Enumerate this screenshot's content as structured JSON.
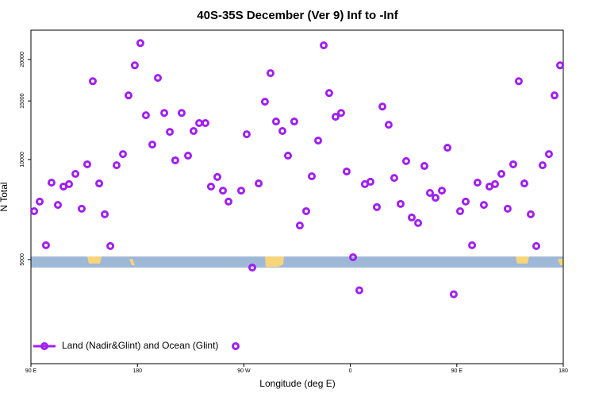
{
  "chart_data": {
    "type": "scatter",
    "title": "40S-35S December (Ver 9)   Inf to -Inf",
    "x_label": "Longitude (deg E)",
    "y_label": "N Total",
    "log_y": true,
    "xlim": [
      90,
      540
    ],
    "ylim": [
      2430,
      24500
    ],
    "xticks": [
      {
        "value": 90,
        "label": "90 E"
      },
      180,
      {
        "value": 270,
        "label": "90 W"
      },
      {
        "value": 360,
        "label": "0"
      },
      {
        "value": 450,
        "label": "90 E"
      },
      {
        "value": 540,
        "label": "180"
      }
    ],
    "yticks": [
      5000,
      10000,
      15000,
      20000
    ],
    "legend": "bottom-left",
    "series": [
      {
        "name": "Land (Nadir&Glint) and Ocean (Glint)",
        "color": "#a020f0",
        "x": [
          92.7,
          97.4,
          102.7,
          107.4,
          112.8,
          117.5,
          122.2,
          127.6,
          132.9,
          137.6,
          142.3,
          147.7,
          152.4,
          157.1,
          162.4,
          167.8,
          172.5,
          177.8,
          182.5,
          187.2,
          192.6,
          197.3,
          202.7,
          207.4,
          212,
          217.4,
          222.8,
          227.5,
          232.2,
          237.5,
          242.2,
          247.6,
          252.3,
          257,
          267.7,
          272.4,
          277.1,
          282.5,
          287.8,
          292.5,
          297.2,
          302.6,
          307.3,
          312.6,
          317.3,
          322.7,
          327.4,
          332.8,
          337.5,
          342.1,
          347.5,
          352.2,
          356.9,
          362.3,
          367.6,
          372.3,
          377,
          382.4,
          387.1,
          392.4,
          397.1,
          402.5,
          407.2,
          411.9,
          417.3,
          422.6,
          427.3,
          432,
          437.4,
          442.1,
          447.4,
          452.8,
          457.5,
          462.9,
          467.5,
          472.9,
          477.6,
          482.3,
          487.7,
          493,
          497.7,
          502.4,
          507.1,
          512.5,
          517.2,
          522.5,
          527.9,
          532.6,
          537.3
        ],
        "values": [
          6990,
          7470,
          5520,
          8520,
          7300,
          8290,
          8430,
          9050,
          7110,
          9670,
          17200,
          8470,
          6840,
          5490,
          9610,
          10380,
          15590,
          19200,
          22400,
          13590,
          11090,
          17600,
          13810,
          12110,
          9940,
          13810,
          10270,
          12180,
          12870,
          12870,
          8290,
          8860,
          8060,
          7470,
          8060,
          11910,
          4730,
          8470,
          14920,
          18190,
          13010,
          12180,
          10270,
          13010,
          6330,
          6990,
          8900,
          11400,
          22050,
          15850,
          13440,
          13810,
          9200,
          5080,
          4040,
          8430,
          8570,
          7190,
          14430,
          12720,
          8800,
          7350,
          9890,
          6690,
          6440,
          9560,
          7930,
          7670,
          8060,
          10850,
          3930,
          6990,
          7470,
          5520,
          8520,
          7300,
          8290,
          8430,
          9050,
          7110,
          9670,
          17200,
          8470,
          6840,
          5490,
          9610,
          10380,
          15590,
          19200
        ]
      }
    ]
  }
}
